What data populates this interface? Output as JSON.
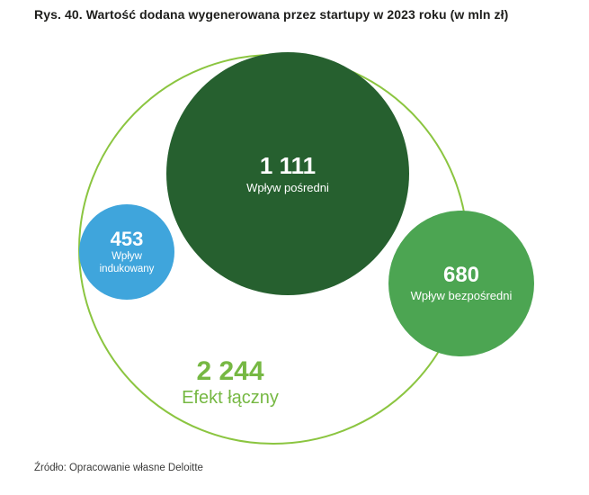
{
  "figure": {
    "title": "Rys. 40. Wartość dodana wygenerowana przez startupy w 2023 roku (w mln zł)",
    "source": "Źródło: Opracowanie własne Deloitte"
  },
  "chart_data": {
    "type": "bubble",
    "title": "Wartość dodana wygenerowana przez startupy w 2023 roku",
    "unit": "mln zł",
    "layout": "nested-circles",
    "legend": "none",
    "total": {
      "value": 2244,
      "display": "2 244",
      "label": "Efekt łączny",
      "color": "#76b843",
      "outline_color": "#8bc540"
    },
    "bubbles": [
      {
        "name": "indirect-impact",
        "value": 1111,
        "display": "1 111",
        "label": "Wpływ pośredni",
        "color": "#26602f",
        "text_color": "#ffffff"
      },
      {
        "name": "induced-impact",
        "value": 453,
        "display": "453",
        "label": "Wpływ indukowany",
        "color": "#3fa5dc",
        "text_color": "#ffffff"
      },
      {
        "name": "direct-impact",
        "value": 680,
        "display": "680",
        "label": "Wpływ bezpośredni",
        "color": "#4ca552",
        "text_color": "#ffffff"
      }
    ]
  }
}
